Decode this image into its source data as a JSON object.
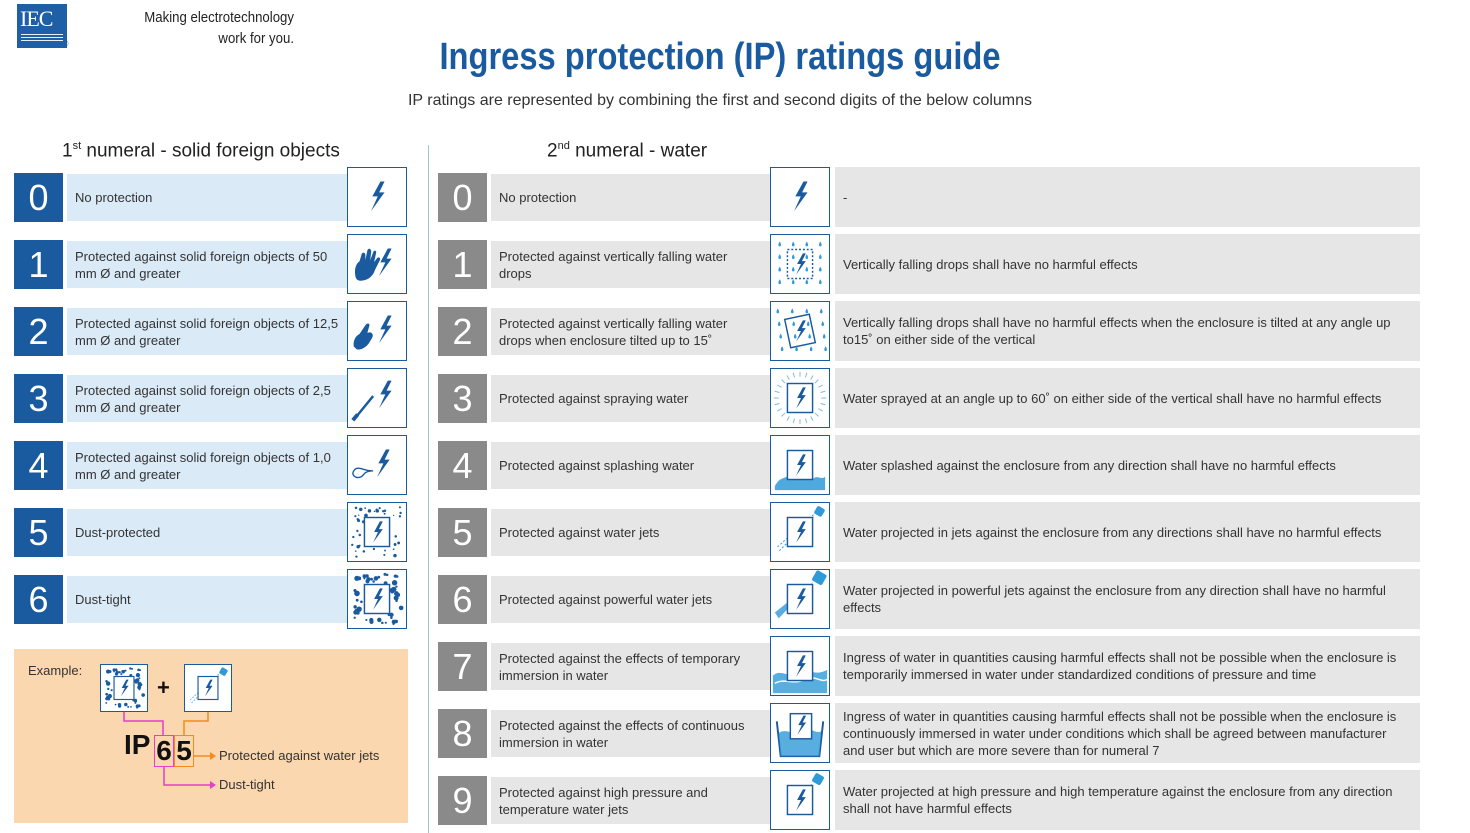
{
  "header": {
    "logo_text": "IEC",
    "slogan": "Making  electrotechnology work for you.",
    "title": "Ingress protection (IP) ratings guide",
    "subtitle": "IP ratings are represented by combining the first and second digits of the below columns"
  },
  "solids": {
    "heading_ordinal": "1",
    "heading_sup": "st",
    "heading_text": " numeral - solid foreign objects",
    "rows": [
      {
        "num": "0",
        "text": "No protection"
      },
      {
        "num": "1",
        "text": "Protected against solid foreign objects of 50 mm Ø and greater"
      },
      {
        "num": "2",
        "text": "Protected against solid foreign objects of 12,5 mm Ø and greater"
      },
      {
        "num": "3",
        "text": "Protected against solid foreign objects of 2,5 mm Ø and greater"
      },
      {
        "num": "4",
        "text": "Protected against solid foreign objects of 1,0 mm Ø and greater"
      },
      {
        "num": "5",
        "text": "Dust-protected"
      },
      {
        "num": "6",
        "text": "Dust-tight"
      }
    ]
  },
  "water": {
    "heading_ordinal": "2",
    "heading_sup": "nd",
    "heading_text": " numeral - water",
    "rows": [
      {
        "num": "0",
        "text": "No protection",
        "detail": "-"
      },
      {
        "num": "1",
        "text": "Protected against vertically falling water drops",
        "detail": "Vertically falling drops shall have no harmful effects"
      },
      {
        "num": "2",
        "text": "Protected against vertically falling water drops when enclosure tilted up to 15˚",
        "detail": "Vertically falling drops shall have no harmful effects when the enclosure is tilted at any angle up to15˚ on either side of the vertical"
      },
      {
        "num": "3",
        "text": "Protected against spraying water",
        "detail": "Water sprayed at an angle up to 60˚ on either side of the vertical shall have no harmful effects"
      },
      {
        "num": "4",
        "text": "Protected against splashing water",
        "detail": "Water splashed against the enclosure from any direction shall have no harmful effects"
      },
      {
        "num": "5",
        "text": "Protected against water jets",
        "detail": "Water projected in jets against the enclosure from any directions shall have no harmful effects"
      },
      {
        "num": "6",
        "text": "Protected against powerful water jets",
        "detail": "Water projected in powerful jets against the enclosure from any direction shall have no harmful effects"
      },
      {
        "num": "7",
        "text": "Protected against the effects of temporary immersion in water",
        "detail": "Ingress of water in quantities causing harmful effects shall not be possible when the enclosure is temporarily immersed in water under standardized conditions of pressure and time"
      },
      {
        "num": "8",
        "text": "Protected against the effects of continuous immersion in water",
        "detail": "Ingress of water in quantities causing harmful effects shall not be possible when the enclosure is continuously immersed in water under conditions which shall be agreed between manufacturer and user but which are more severe than for numeral 7"
      },
      {
        "num": "9",
        "text": "Protected against high pressure and temperature water jets",
        "detail": "Water projected at high pressure and high temperature against the enclosure from any direction shall not have harmful effects"
      }
    ]
  },
  "example": {
    "label": "Example:",
    "plus": "+",
    "ip": "IP",
    "first_digit": "6",
    "second_digit": "5",
    "second_desc": "Protected against water jets",
    "first_desc": "Dust-tight",
    "first_color": "#e63fc8",
    "second_color": "#f28c1e"
  },
  "colors": {
    "blue": "#1a5a9f",
    "light_blue": "#dbeaf7",
    "grey": "#8a8a8a",
    "light_grey": "#e6e6e6",
    "example_bg": "#fbd7b0"
  }
}
